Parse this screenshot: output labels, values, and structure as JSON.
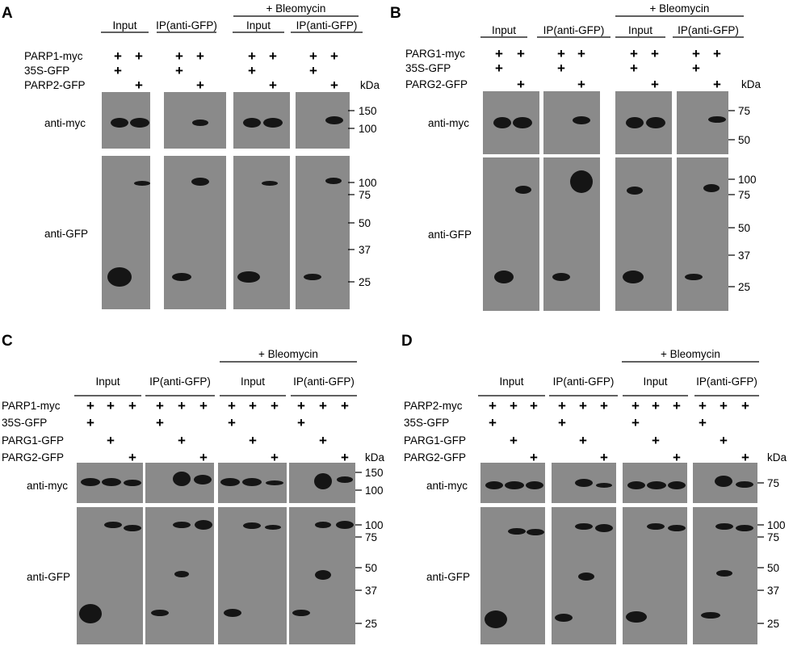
{
  "figure_type": "western blot co-immunoprecipitation",
  "panels": [
    {
      "id": "A",
      "label": "A",
      "treatment_label": "+ Bleomycin",
      "groups": [
        "Input",
        "IP(anti-GFP)",
        "Input",
        "IP(anti-GFP)"
      ],
      "rows": [
        {
          "label": "PARP1-myc",
          "marks": [
            [
              1,
              1
            ],
            [
              1,
              1
            ],
            [
              1,
              1
            ],
            [
              1,
              1
            ]
          ]
        },
        {
          "label": "35S-GFP",
          "marks": [
            [
              1,
              0
            ],
            [
              1,
              0
            ],
            [
              1,
              0
            ],
            [
              1,
              0
            ]
          ]
        },
        {
          "label": "PARP2-GFP",
          "marks": [
            [
              0,
              1
            ],
            [
              0,
              1
            ],
            [
              0,
              1
            ],
            [
              0,
              1
            ]
          ]
        }
      ],
      "blots": [
        "anti-myc",
        "anti-GFP"
      ],
      "kda_label": "kDa",
      "markers_top": [
        "150",
        "100"
      ],
      "markers_bottom": [
        "100",
        "75",
        "50",
        "37",
        "25"
      ]
    },
    {
      "id": "B",
      "label": "B",
      "treatment_label": "+ Bleomycin",
      "groups": [
        "Input",
        "IP(anti-GFP)",
        "Input",
        "IP(anti-GFP)"
      ],
      "rows": [
        {
          "label": "PARG1-myc",
          "marks": [
            [
              1,
              1
            ],
            [
              1,
              1
            ],
            [
              1,
              1
            ],
            [
              1,
              1
            ]
          ]
        },
        {
          "label": "35S-GFP",
          "marks": [
            [
              1,
              0
            ],
            [
              1,
              0
            ],
            [
              1,
              0
            ],
            [
              1,
              0
            ]
          ]
        },
        {
          "label": "PARG2-GFP",
          "marks": [
            [
              0,
              1
            ],
            [
              0,
              1
            ],
            [
              0,
              1
            ],
            [
              0,
              1
            ]
          ]
        }
      ],
      "blots": [
        "anti-myc",
        "anti-GFP"
      ],
      "kda_label": "kDa",
      "markers_top": [
        "75",
        "50"
      ],
      "markers_bottom": [
        "100",
        "75",
        "50",
        "37",
        "25"
      ]
    },
    {
      "id": "C",
      "label": "C",
      "treatment_label": "+ Bleomycin",
      "groups": [
        "Input",
        "IP(anti-GFP)",
        "Input",
        "IP(anti-GFP)"
      ],
      "rows": [
        {
          "label": "PARP1-myc",
          "marks": [
            [
              1,
              1,
              1
            ],
            [
              1,
              1,
              1
            ],
            [
              1,
              1,
              1
            ],
            [
              1,
              1,
              1
            ]
          ]
        },
        {
          "label": "35S-GFP",
          "marks": [
            [
              1,
              0,
              0
            ],
            [
              1,
              0,
              0
            ],
            [
              1,
              0,
              0
            ],
            [
              1,
              0,
              0
            ]
          ]
        },
        {
          "label": "PARG1-GFP",
          "marks": [
            [
              0,
              1,
              0
            ],
            [
              0,
              1,
              0
            ],
            [
              0,
              1,
              0
            ],
            [
              0,
              1,
              0
            ]
          ]
        },
        {
          "label": "PARG2-GFP",
          "marks": [
            [
              0,
              0,
              1
            ],
            [
              0,
              0,
              1
            ],
            [
              0,
              0,
              1
            ],
            [
              0,
              0,
              1
            ]
          ]
        }
      ],
      "blots": [
        "anti-myc",
        "anti-GFP"
      ],
      "kda_label": "kDa",
      "markers_top": [
        "150",
        "100"
      ],
      "markers_bottom": [
        "100",
        "75",
        "50",
        "37",
        "25"
      ]
    },
    {
      "id": "D",
      "label": "D",
      "treatment_label": "+ Bleomycin",
      "groups": [
        "Input",
        "IP(anti-GFP)",
        "Input",
        "IP(anti-GFP)"
      ],
      "rows": [
        {
          "label": "PARP2-myc",
          "marks": [
            [
              1,
              1,
              1
            ],
            [
              1,
              1,
              1
            ],
            [
              1,
              1,
              1
            ],
            [
              1,
              1,
              1
            ]
          ]
        },
        {
          "label": "35S-GFP",
          "marks": [
            [
              1,
              0,
              0
            ],
            [
              1,
              0,
              0
            ],
            [
              1,
              0,
              0
            ],
            [
              1,
              0,
              0
            ]
          ]
        },
        {
          "label": "PARG1-GFP",
          "marks": [
            [
              0,
              1,
              0
            ],
            [
              0,
              1,
              0
            ],
            [
              0,
              1,
              0
            ],
            [
              0,
              1,
              0
            ]
          ]
        },
        {
          "label": "PARG2-GFP",
          "marks": [
            [
              0,
              0,
              1
            ],
            [
              0,
              0,
              1
            ],
            [
              0,
              0,
              1
            ],
            [
              0,
              0,
              1
            ]
          ]
        }
      ],
      "blots": [
        "anti-myc",
        "anti-GFP"
      ],
      "kda_label": "kDa",
      "markers_top": [
        "75"
      ],
      "markers_bottom": [
        "100",
        "75",
        "50",
        "37",
        "25"
      ]
    }
  ],
  "plus_symbol": "+"
}
